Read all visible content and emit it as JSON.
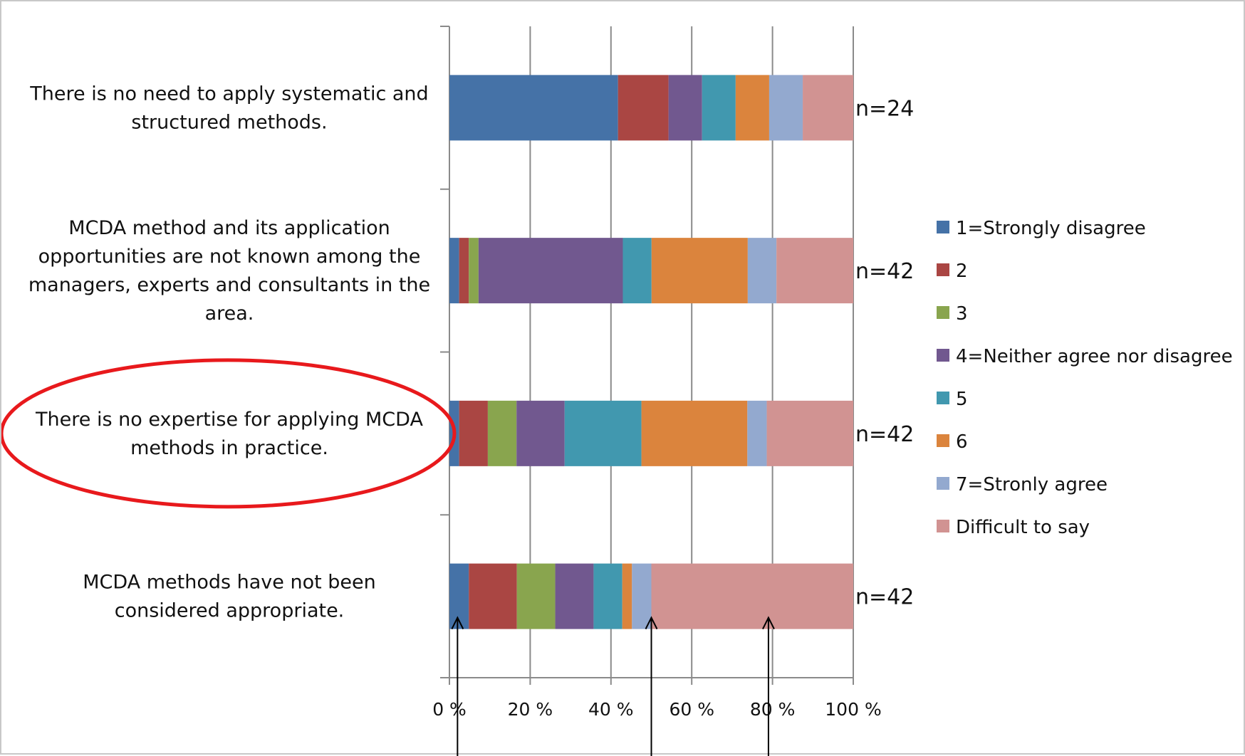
{
  "chart_data": {
    "type": "bar",
    "orientation": "horizontal",
    "stacked": "percent",
    "categories": [
      "There is no need to apply systematic  and structured methods.",
      "MCDA method and its application opportunities are not known among the managers, experts and consultants  in the area.",
      "There is no expertise for applying MCDA methods in practice.",
      "MCDA methods have  not been considered appropriate."
    ],
    "category_lines": [
      [
        "There is no need to apply systematic  and",
        "structured methods."
      ],
      [
        "MCDA method and its application",
        "opportunities are not known among the",
        "managers, experts and consultants  in the",
        "area."
      ],
      [
        "There is no expertise for applying MCDA",
        "methods in practice."
      ],
      [
        "MCDA methods have  not been",
        "considered appropriate."
      ]
    ],
    "n_labels": [
      "n=24",
      "n=42",
      "n=42",
      "n=42"
    ],
    "series": [
      {
        "name": "1=Strongly disagree",
        "color": "#4572A7",
        "values": [
          41.7,
          2.4,
          2.4,
          4.8
        ]
      },
      {
        "name": "2",
        "color": "#AA4643",
        "values": [
          12.5,
          2.4,
          7.1,
          11.9
        ]
      },
      {
        "name": "3",
        "color": "#89A54E",
        "values": [
          0,
          2.4,
          7.1,
          9.5
        ]
      },
      {
        "name": "4=Neither agree nor disagree",
        "color": "#71588F",
        "values": [
          8.3,
          35.7,
          11.9,
          9.5
        ]
      },
      {
        "name": "5",
        "color": "#4198AF",
        "values": [
          8.3,
          7.1,
          19.0,
          7.1
        ]
      },
      {
        "name": "6",
        "color": "#DB843D",
        "values": [
          8.3,
          23.8,
          26.2,
          2.4
        ]
      },
      {
        "name": "7=Stronly agree",
        "color": "#93A9CF",
        "values": [
          8.3,
          7.1,
          4.8,
          4.8
        ]
      },
      {
        "name": "Difficult to say",
        "color": "#D19392",
        "values": [
          12.5,
          19.0,
          21.4,
          50.0
        ]
      }
    ],
    "xticks": [
      "0 %",
      "20 %",
      "40 %",
      "60 %",
      "80 %",
      "100 %"
    ],
    "xlim": [
      0,
      100
    ],
    "grid": true,
    "legend": "right",
    "annotations": {
      "highlight_ellipse": "There is no expertise for applying MCDA methods in practice.",
      "highlight_color": "#E8191C",
      "arrows_at_percent": [
        2,
        50,
        79
      ]
    }
  }
}
